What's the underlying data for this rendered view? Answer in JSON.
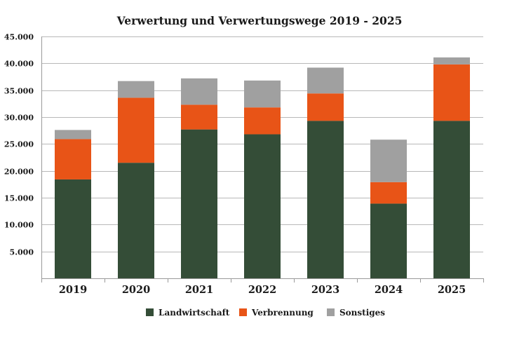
{
  "chart_data": {
    "type": "bar",
    "stacked": true,
    "title": "Verwertung und Verwertungswege  2019 - 2025",
    "xlabel": "",
    "ylabel": "",
    "categories": [
      "2019",
      "2020",
      "2021",
      "2022",
      "2023",
      "2024",
      "2025"
    ],
    "series": [
      {
        "name": "Landwirtschaft",
        "color": "#344d37",
        "values": [
          18400,
          21500,
          27700,
          26800,
          29300,
          13900,
          29300
        ]
      },
      {
        "name": "Verbrennung",
        "color": "#e85417",
        "values": [
          7500,
          12100,
          4600,
          5000,
          5100,
          4000,
          10500
        ]
      },
      {
        "name": "Sonstiges",
        "color": "#a0a0a0",
        "values": [
          1700,
          3100,
          4900,
          5000,
          4800,
          7900,
          1300
        ]
      }
    ],
    "ylim": [
      0,
      45000
    ],
    "yticks": [
      5000,
      10000,
      15000,
      20000,
      25000,
      30000,
      35000,
      40000,
      45000
    ],
    "ytick_labels": [
      "5.000",
      "10.000",
      "15.000",
      "20.000",
      "25.000",
      "30.000",
      "35.000",
      "40.000",
      "45.000"
    ],
    "grid": true,
    "legend_position": "bottom-center"
  }
}
